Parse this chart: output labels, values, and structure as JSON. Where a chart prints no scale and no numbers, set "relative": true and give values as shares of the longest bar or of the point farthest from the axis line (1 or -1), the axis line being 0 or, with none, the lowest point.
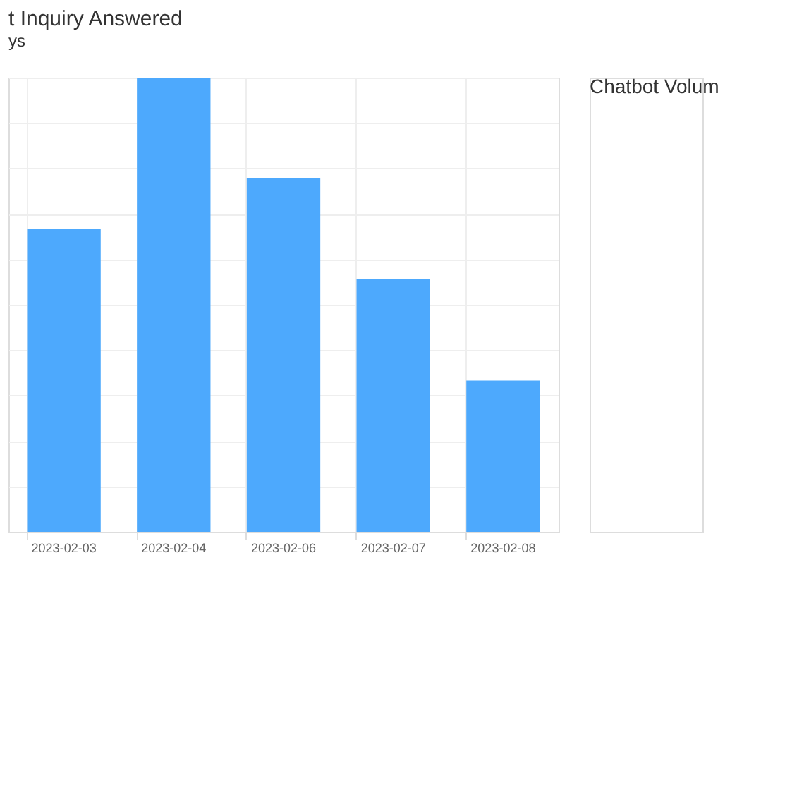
{
  "chart_data": [
    {
      "type": "bar",
      "title": "t Inquiry Answered",
      "categories": [
        "2023-02-03",
        "2023-02-04",
        "2023-02-06",
        "2023-02-07",
        "2023-02-08"
      ],
      "values": [
        0.667,
        1,
        0.778,
        0.556,
        0.333
      ],
      "color": "#4da9fd",
      "relative": true,
      "grid": true,
      "annotations": [
        "ys"
      ]
    },
    {
      "type": "other",
      "title": "Chatbot Volum"
    }
  ]
}
